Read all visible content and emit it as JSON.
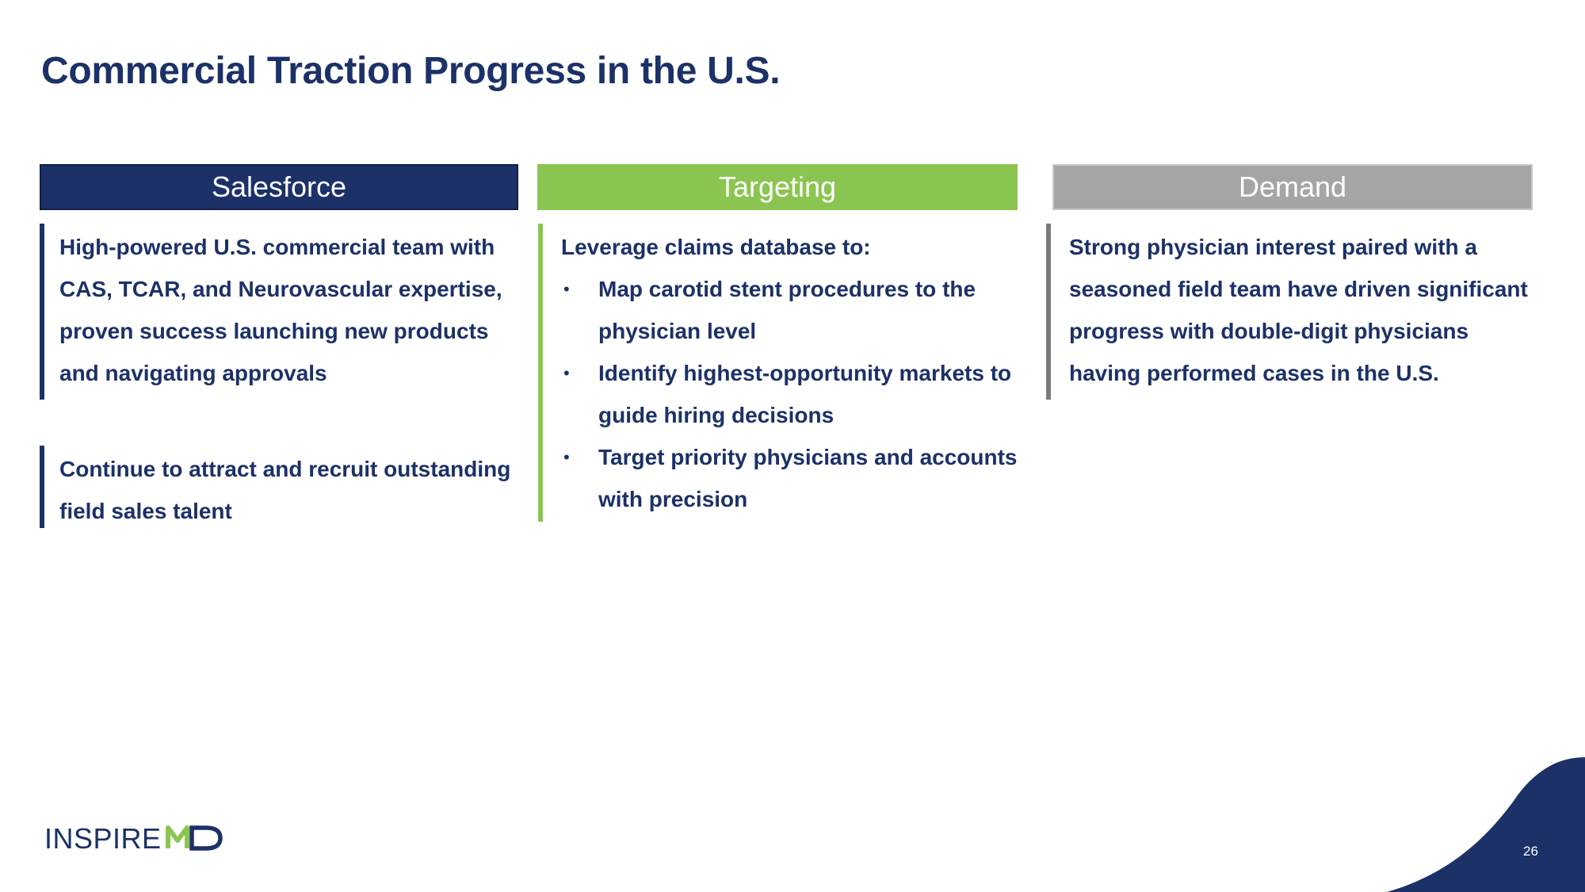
{
  "slide": {
    "title": "Commercial Traction Progress in the U.S.",
    "page_number": "26"
  },
  "columns": [
    {
      "header": "Salesforce",
      "color": "#1c3168",
      "paragraphs": [
        "High-powered U.S. commercial team with CAS, TCAR, and Neurovascular expertise, proven success launching new products and navigating approvals",
        "Continue to attract and recruit outstanding field sales talent"
      ]
    },
    {
      "header": "Targeting",
      "color": "#8bc551",
      "intro": "Leverage claims database to:",
      "bullets": [
        "Map carotid stent procedures to the physician level",
        "Identify highest-opportunity markets to guide hiring decisions",
        "Target priority physicians and accounts with precision"
      ]
    },
    {
      "header": "Demand",
      "color": "#a5a5a5",
      "paragraphs": [
        "Strong physician interest paired with a seasoned field team have driven significant progress with double-digit physicians having performed cases in the U.S."
      ]
    }
  ],
  "logo": {
    "text": "INSPIREMD",
    "brand_blue": "#1c3168",
    "brand_green": "#8bc551"
  }
}
